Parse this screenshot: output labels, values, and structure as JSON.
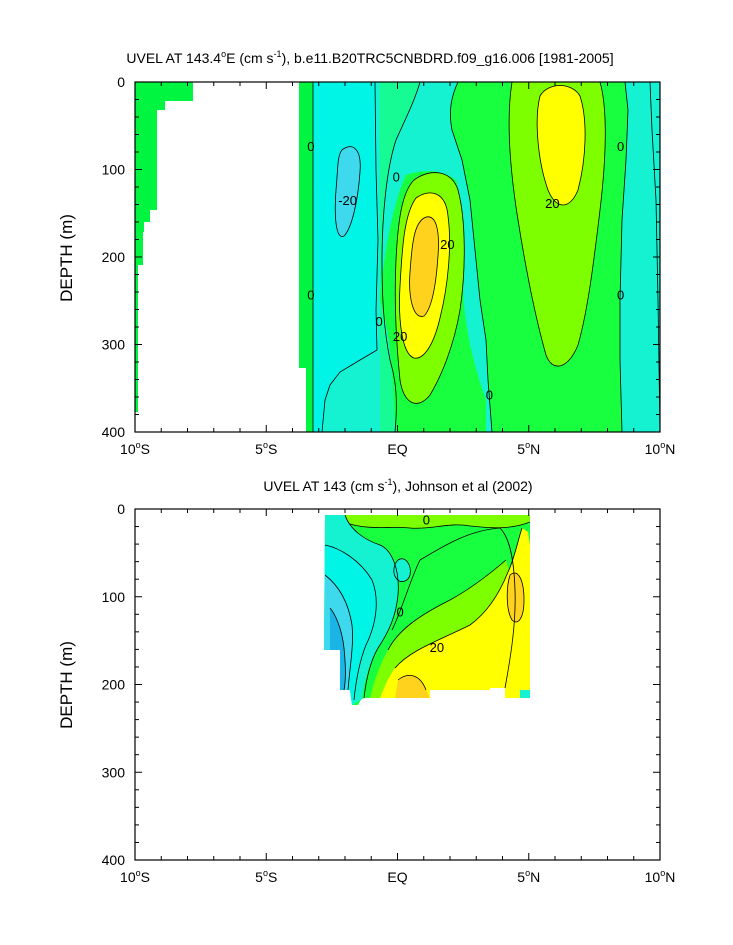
{
  "colors": {
    "neg30": "#1ab4e6",
    "neg20": "#3fd9ee",
    "neg10": "#00f5e6",
    "zero_band": "#14f2d2",
    "pos10": "#17fb94",
    "pos20": "#18ff40",
    "pos30": "#7dff00",
    "pos40": "#ffff00",
    "pos50": "#ffd21e",
    "land": "#00f540",
    "background": "#ffffff",
    "contour_line": "#000000"
  },
  "chart_data": [
    {
      "type": "contour",
      "title_main": "UVEL AT 143.4",
      "title_deg": "o",
      "title_mid": "E (cm s",
      "title_exp": "-1",
      "title_tail": "), b.e11.B20TRC5CNBDRD.f09_g16.006 [1981-2005]",
      "ylabel": "DEPTH (m)",
      "xlim": [
        -10,
        10
      ],
      "ylim": [
        400,
        0
      ],
      "x_ticks": [
        {
          "value": -10,
          "num": "10",
          "deg": "o",
          "hemi": "S"
        },
        {
          "value": -5,
          "num": "5",
          "deg": "o",
          "hemi": "S"
        },
        {
          "value": 0,
          "num": "EQ",
          "deg": "",
          "hemi": ""
        },
        {
          "value": 5,
          "num": "5",
          "deg": "o",
          "hemi": "N"
        },
        {
          "value": 10,
          "num": "10",
          "deg": "o",
          "hemi": "N"
        }
      ],
      "y_ticks": [
        "0",
        "100",
        "200",
        "300",
        "400"
      ],
      "contour_labels": [
        {
          "text": "0",
          "lat": -3.3,
          "depth": 73
        },
        {
          "text": "-20",
          "lat": -1.9,
          "depth": 135
        },
        {
          "text": "0",
          "lat": -0.05,
          "depth": 108
        },
        {
          "text": "20",
          "lat": 1.9,
          "depth": 185
        },
        {
          "text": "0",
          "lat": -3.3,
          "depth": 243
        },
        {
          "text": "0",
          "lat": -0.7,
          "depth": 273
        },
        {
          "text": "20",
          "lat": 0.1,
          "depth": 290
        },
        {
          "text": "0",
          "lat": 3.5,
          "depth": 357
        },
        {
          "text": "20",
          "lat": 5.9,
          "depth": 138
        },
        {
          "text": "0",
          "lat": 8.5,
          "depth": 73
        },
        {
          "text": "0",
          "lat": 8.5,
          "depth": 243
        }
      ]
    },
    {
      "type": "contour",
      "title_main": "UVEL AT 143 (cm s",
      "title_exp": "-1",
      "title_tail": "), Johnson et al (2002)",
      "ylabel": "DEPTH (m)",
      "xlim": [
        -10,
        10
      ],
      "ylim": [
        400,
        0
      ],
      "x_ticks": [
        {
          "value": -10,
          "num": "10",
          "deg": "o",
          "hemi": "S"
        },
        {
          "value": -5,
          "num": "5",
          "deg": "o",
          "hemi": "S"
        },
        {
          "value": 0,
          "num": "EQ",
          "deg": "",
          "hemi": ""
        },
        {
          "value": 5,
          "num": "5",
          "deg": "o",
          "hemi": "N"
        },
        {
          "value": 10,
          "num": "10",
          "deg": "o",
          "hemi": "N"
        }
      ],
      "y_ticks": [
        "0",
        "100",
        "200",
        "300",
        "400"
      ],
      "data_extent": {
        "lat": [
          -2.8,
          5.0
        ],
        "depth": [
          10,
          225
        ]
      },
      "contour_labels": [
        {
          "text": "0",
          "lat": 1.1,
          "depth": 12
        },
        {
          "text": "0",
          "lat": 0.1,
          "depth": 117
        },
        {
          "text": "20",
          "lat": 1.5,
          "depth": 157
        }
      ]
    }
  ]
}
